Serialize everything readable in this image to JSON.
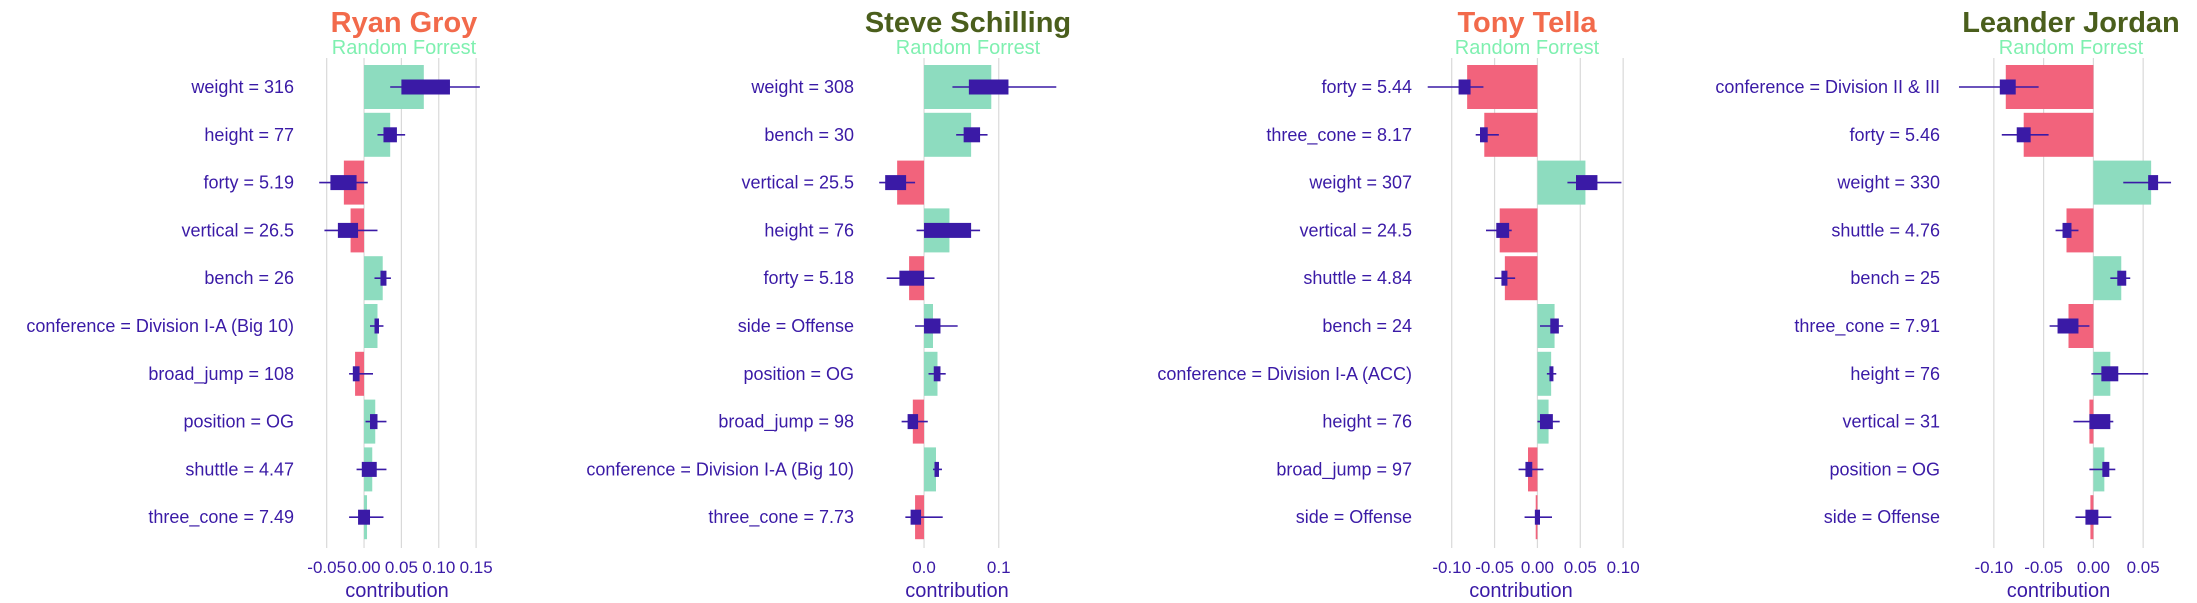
{
  "colors": {
    "positive_bar": "#8ddcbf",
    "negative_bar": "#f2637c",
    "box": "#3a1aa6",
    "text": "#3a1aa6",
    "grid": "#d9d9d9",
    "title_red": "#f26a4b",
    "title_olive": "#4a5e1c",
    "subtitle": "#7ff0b0"
  },
  "chart_data": [
    {
      "type": "bar",
      "title": "Ryan Groy",
      "title_color": "#f26a4b",
      "subtitle": "Random Forrest",
      "xlabel": "contribution",
      "xlim": [
        -0.075,
        0.19
      ],
      "ticks": [
        -0.05,
        0.0,
        0.05,
        0.1,
        0.15
      ],
      "tick_labels": [
        "-0.05",
        "0.00",
        "0.05",
        "0.10",
        "0.15"
      ],
      "features": [
        {
          "label": "weight = 316",
          "value": 0.08,
          "box": [
            0.05,
            0.115
          ],
          "whisker": [
            0.035,
            0.155
          ]
        },
        {
          "label": "height = 77",
          "value": 0.035,
          "box": [
            0.026,
            0.044
          ],
          "whisker": [
            0.018,
            0.055
          ]
        },
        {
          "label": "forty = 5.19",
          "value": -0.027,
          "box": [
            -0.045,
            -0.01
          ],
          "whisker": [
            -0.06,
            0.005
          ]
        },
        {
          "label": "vertical = 26.5",
          "value": -0.018,
          "box": [
            -0.035,
            -0.008
          ],
          "whisker": [
            -0.053,
            0.018
          ]
        },
        {
          "label": "bench = 26",
          "value": 0.025,
          "box": [
            0.022,
            0.03
          ],
          "whisker": [
            0.014,
            0.036
          ]
        },
        {
          "label": "conference = Division I-A (Big 10)",
          "value": 0.018,
          "box": [
            0.014,
            0.02
          ],
          "whisker": [
            0.008,
            0.026
          ]
        },
        {
          "label": "broad_jump = 108",
          "value": -0.012,
          "box": [
            -0.015,
            -0.006
          ],
          "whisker": [
            -0.02,
            0.012
          ]
        },
        {
          "label": "position = OG",
          "value": 0.015,
          "box": [
            0.008,
            0.018
          ],
          "whisker": [
            0.002,
            0.03
          ]
        },
        {
          "label": "shuttle = 4.47",
          "value": 0.011,
          "box": [
            -0.003,
            0.017
          ],
          "whisker": [
            -0.01,
            0.03
          ]
        },
        {
          "label": "three_cone = 7.49",
          "value": 0.004,
          "box": [
            -0.008,
            0.008
          ],
          "whisker": [
            -0.02,
            0.026
          ]
        }
      ]
    },
    {
      "type": "bar",
      "title": "Steve Schilling",
      "title_color": "#4a5e1c",
      "subtitle": "Random Forrest",
      "xlabel": "contribution",
      "xlim": [
        -0.075,
        0.19
      ],
      "ticks": [
        0.0,
        0.1
      ],
      "tick_labels": [
        "0.0",
        "0.1"
      ],
      "features": [
        {
          "label": "weight = 308",
          "value": 0.09,
          "box": [
            0.06,
            0.113
          ],
          "whisker": [
            0.038,
            0.177
          ]
        },
        {
          "label": "bench = 30",
          "value": 0.063,
          "box": [
            0.053,
            0.075
          ],
          "whisker": [
            0.043,
            0.085
          ]
        },
        {
          "label": "vertical = 25.5",
          "value": -0.036,
          "box": [
            -0.052,
            -0.024
          ],
          "whisker": [
            -0.06,
            -0.012
          ]
        },
        {
          "label": "height = 76",
          "value": 0.034,
          "box": [
            0.0,
            0.063
          ],
          "whisker": [
            -0.01,
            0.075
          ]
        },
        {
          "label": "forty = 5.18",
          "value": -0.02,
          "box": [
            -0.033,
            0.0
          ],
          "whisker": [
            -0.05,
            0.014
          ]
        },
        {
          "label": "side = Offense",
          "value": 0.012,
          "box": [
            0.0,
            0.022
          ],
          "whisker": [
            -0.012,
            0.045
          ]
        },
        {
          "label": "position = OG",
          "value": 0.018,
          "box": [
            0.013,
            0.022
          ],
          "whisker": [
            0.006,
            0.029
          ]
        },
        {
          "label": "broad_jump = 98",
          "value": -0.015,
          "box": [
            -0.022,
            -0.008
          ],
          "whisker": [
            -0.03,
            0.005
          ]
        },
        {
          "label": "conference = Division I-A (Big 10)",
          "value": 0.016,
          "box": [
            0.014,
            0.02
          ],
          "whisker": [
            0.012,
            0.024
          ]
        },
        {
          "label": "three_cone = 7.73",
          "value": -0.012,
          "box": [
            -0.018,
            -0.004
          ],
          "whisker": [
            -0.025,
            0.025
          ]
        }
      ]
    },
    {
      "type": "bar",
      "title": "Tony Tella",
      "title_color": "#f26a4b",
      "subtitle": "Random Forrest",
      "xlabel": "contribution",
      "xlim": [
        -0.13,
        0.115
      ],
      "ticks": [
        -0.1,
        -0.05,
        0.0,
        0.05,
        0.1
      ],
      "tick_labels": [
        "-0.10",
        "-0.05",
        "0.00",
        "0.05",
        "0.10"
      ],
      "features": [
        {
          "label": "forty = 5.44",
          "value": -0.082,
          "box": [
            -0.092,
            -0.078
          ],
          "whisker": [
            -0.128,
            -0.063
          ]
        },
        {
          "label": "three_cone = 8.17",
          "value": -0.062,
          "box": [
            -0.067,
            -0.058
          ],
          "whisker": [
            -0.072,
            -0.045
          ]
        },
        {
          "label": "weight = 307",
          "value": 0.056,
          "box": [
            0.045,
            0.07
          ],
          "whisker": [
            0.035,
            0.098
          ]
        },
        {
          "label": "vertical = 24.5",
          "value": -0.044,
          "box": [
            -0.048,
            -0.033
          ],
          "whisker": [
            -0.06,
            -0.03
          ]
        },
        {
          "label": "shuttle = 4.84",
          "value": -0.038,
          "box": [
            -0.042,
            -0.035
          ],
          "whisker": [
            -0.05,
            -0.026
          ]
        },
        {
          "label": "bench = 24",
          "value": 0.02,
          "box": [
            0.015,
            0.025
          ],
          "whisker": [
            0.003,
            0.03
          ]
        },
        {
          "label": "conference = Division I-A (ACC)",
          "value": 0.016,
          "box": [
            0.014,
            0.018
          ],
          "whisker": [
            0.011,
            0.022
          ]
        },
        {
          "label": "height = 76",
          "value": 0.013,
          "box": [
            0.003,
            0.018
          ],
          "whisker": [
            0.0,
            0.026
          ]
        },
        {
          "label": "broad_jump = 97",
          "value": -0.011,
          "box": [
            -0.014,
            -0.006
          ],
          "whisker": [
            -0.022,
            0.007
          ]
        },
        {
          "label": "side = Offense",
          "value": -0.002,
          "box": [
            -0.003,
            0.003
          ],
          "whisker": [
            -0.015,
            0.017
          ]
        }
      ]
    },
    {
      "type": "bar",
      "title": "Leander Jordan",
      "title_color": "#4a5e1c",
      "subtitle": "Random Forrest",
      "xlabel": "contribution",
      "xlim": [
        -0.14,
        0.09
      ],
      "ticks": [
        -0.1,
        -0.05,
        0.0,
        0.05
      ],
      "tick_labels": [
        "-0.10",
        "-0.05",
        "0.00",
        "0.05"
      ],
      "features": [
        {
          "label": "conference = Division II & III",
          "value": -0.088,
          "box": [
            -0.094,
            -0.078
          ],
          "whisker": [
            -0.135,
            -0.055
          ]
        },
        {
          "label": "forty = 5.46",
          "value": -0.07,
          "box": [
            -0.077,
            -0.063
          ],
          "whisker": [
            -0.092,
            -0.045
          ]
        },
        {
          "label": "weight = 330",
          "value": 0.058,
          "box": [
            0.055,
            0.065
          ],
          "whisker": [
            0.03,
            0.078
          ]
        },
        {
          "label": "shuttle = 4.76",
          "value": -0.027,
          "box": [
            -0.031,
            -0.022
          ],
          "whisker": [
            -0.038,
            -0.015
          ]
        },
        {
          "label": "bench = 25",
          "value": 0.028,
          "box": [
            0.024,
            0.033
          ],
          "whisker": [
            0.017,
            0.037
          ]
        },
        {
          "label": "three_cone = 7.91",
          "value": -0.025,
          "box": [
            -0.036,
            -0.015
          ],
          "whisker": [
            -0.044,
            -0.004
          ]
        },
        {
          "label": "height = 76",
          "value": 0.017,
          "box": [
            0.008,
            0.025
          ],
          "whisker": [
            -0.002,
            0.055
          ]
        },
        {
          "label": "vertical = 31",
          "value": -0.004,
          "box": [
            -0.004,
            0.017
          ],
          "whisker": [
            -0.02,
            0.02
          ]
        },
        {
          "label": "position = OG",
          "value": 0.011,
          "box": [
            0.009,
            0.016
          ],
          "whisker": [
            -0.004,
            0.022
          ]
        },
        {
          "label": "side = Offense",
          "value": -0.003,
          "box": [
            -0.008,
            0.005
          ],
          "whisker": [
            -0.018,
            0.018
          ]
        }
      ]
    }
  ]
}
